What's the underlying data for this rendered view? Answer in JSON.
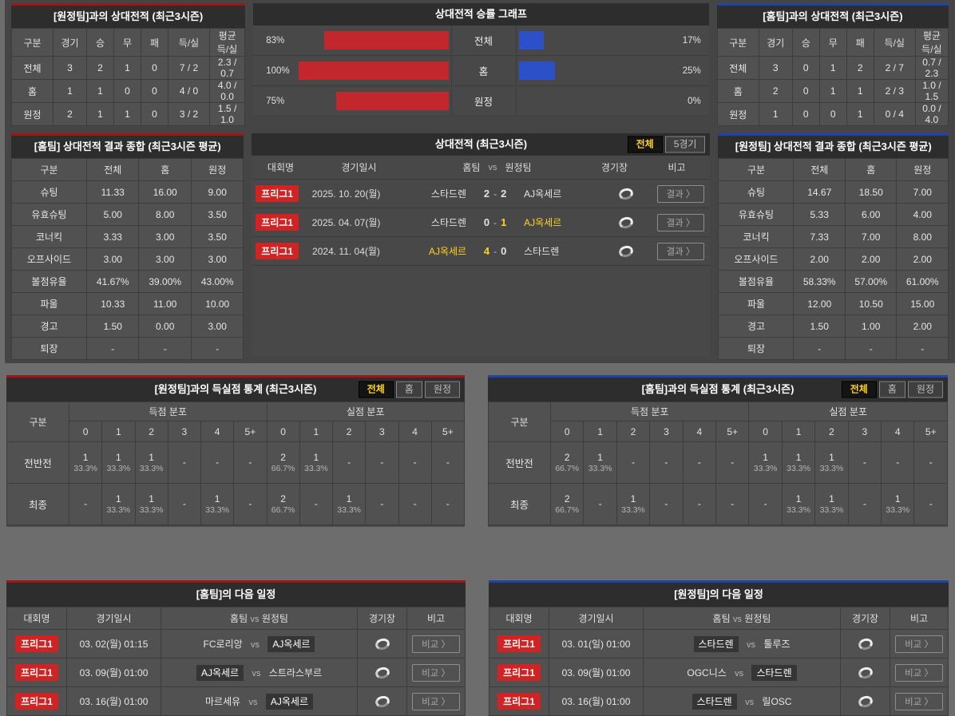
{
  "ui": {
    "vs": "vs",
    "result_label": "결과 〉",
    "compare_label": "비교 〉"
  },
  "colors": {
    "red_bar": "#c1272d",
    "blue_bar": "#2b50c8",
    "badge_red": "#d02424",
    "highlight_yellow": "#ffd21e",
    "panel_border_red": "#a31515",
    "panel_border_blue": "#1e44a8"
  },
  "top_left": {
    "title": "[원정팀]과의 상대전적 (최근3시즌)",
    "headers": [
      "구분",
      "경기",
      "승",
      "무",
      "패",
      "득/실",
      "평균 득/실"
    ],
    "rows": [
      {
        "label": "전체",
        "cells": [
          "3",
          "2",
          "1",
          "0",
          "7 / 2",
          "2.3 / 0.7"
        ]
      },
      {
        "label": "홈",
        "cells": [
          "1",
          "1",
          "0",
          "0",
          "4 / 0",
          "4.0 / 0.0"
        ]
      },
      {
        "label": "원정",
        "cells": [
          "2",
          "1",
          "1",
          "0",
          "3 / 2",
          "1.5 / 1.0"
        ]
      }
    ]
  },
  "chart": {
    "type": "bar",
    "title": "상대전적 승률 그래프",
    "rows": [
      {
        "label": "전체",
        "left_pct": "83%",
        "right_pct": "17%"
      },
      {
        "label": "홈",
        "left_pct": "100%",
        "right_pct": "25%"
      },
      {
        "label": "원정",
        "left_pct": "75%",
        "right_pct": "0%"
      }
    ]
  },
  "top_right": {
    "title": "[홈팀]과의 상대전적 (최근3시즌)",
    "headers": [
      "구분",
      "경기",
      "승",
      "무",
      "패",
      "득/실",
      "평균 득/실"
    ],
    "rows": [
      {
        "label": "전체",
        "cells": [
          "3",
          "0",
          "1",
          "2",
          "2 / 7",
          "0.7 / 2.3"
        ]
      },
      {
        "label": "홈",
        "cells": [
          "2",
          "0",
          "1",
          "1",
          "2 / 3",
          "1.0 / 1.5"
        ]
      },
      {
        "label": "원정",
        "cells": [
          "1",
          "0",
          "0",
          "1",
          "0 / 4",
          "0.0 / 4.0"
        ]
      }
    ]
  },
  "stats_home": {
    "title": "[홈팀] 상대전적 결과 종합 (최근3시즌 평균)",
    "headers": [
      "구분",
      "전체",
      "홈",
      "원정"
    ],
    "rows": [
      {
        "label": "슈팅",
        "cells": [
          "11.33",
          "16.00",
          "9.00"
        ]
      },
      {
        "label": "유효슈팅",
        "cells": [
          "5.00",
          "8.00",
          "3.50"
        ]
      },
      {
        "label": "코너킥",
        "cells": [
          "3.33",
          "3.00",
          "3.50"
        ]
      },
      {
        "label": "오프사이드",
        "cells": [
          "3.00",
          "3.00",
          "3.00"
        ]
      },
      {
        "label": "볼점유율",
        "cells": [
          "41.67%",
          "39.00%",
          "43.00%"
        ]
      },
      {
        "label": "파울",
        "cells": [
          "10.33",
          "11.00",
          "10.00"
        ]
      },
      {
        "label": "경고",
        "cells": [
          "1.50",
          "0.00",
          "3.00"
        ]
      },
      {
        "label": "퇴장",
        "cells": [
          "-",
          "-",
          "-"
        ]
      }
    ]
  },
  "matches": {
    "title": "상대전적 (최근3시즌)",
    "tabs": [
      {
        "label": "전체",
        "active": true
      },
      {
        "label": "5경기",
        "active": false
      }
    ],
    "headers": {
      "league": "대회명",
      "date": "경기일시",
      "home": "홈팀",
      "away": "원정팀",
      "stadium": "경기장",
      "note": "비고"
    },
    "rows": [
      {
        "league": "프리그1",
        "date": "2025. 10. 20(월)",
        "home": "스타드렌",
        "hs": "2",
        "as": "2",
        "away": "AJ옥세르",
        "winner": "draw"
      },
      {
        "league": "프리그1",
        "date": "2025. 04. 07(월)",
        "home": "스타드렌",
        "hs": "0",
        "as": "1",
        "away": "AJ옥세르",
        "winner": "away"
      },
      {
        "league": "프리그1",
        "date": "2024. 11. 04(월)",
        "home": "AJ옥세르",
        "hs": "4",
        "as": "0",
        "away": "스타드렌",
        "winner": "home"
      }
    ]
  },
  "stats_away": {
    "title": "[원정팀] 상대전적 결과 종합 (최근3시즌 평균)",
    "headers": [
      "구분",
      "전체",
      "홈",
      "원정"
    ],
    "rows": [
      {
        "label": "슈팅",
        "cells": [
          "14.67",
          "18.50",
          "7.00"
        ]
      },
      {
        "label": "유효슈팅",
        "cells": [
          "5.33",
          "6.00",
          "4.00"
        ]
      },
      {
        "label": "코너킥",
        "cells": [
          "7.33",
          "7.00",
          "8.00"
        ]
      },
      {
        "label": "오프사이드",
        "cells": [
          "2.00",
          "2.00",
          "2.00"
        ]
      },
      {
        "label": "볼점유율",
        "cells": [
          "58.33%",
          "57.00%",
          "61.00%"
        ]
      },
      {
        "label": "파울",
        "cells": [
          "12.00",
          "10.50",
          "15.00"
        ]
      },
      {
        "label": "경고",
        "cells": [
          "1.50",
          "1.00",
          "2.00"
        ]
      },
      {
        "label": "퇴장",
        "cells": [
          "-",
          "-",
          "-"
        ]
      }
    ]
  },
  "goals_left": {
    "title": "[원정팀]과의 득실점 통계 (최근3시즌)",
    "tabs": [
      {
        "label": "전체",
        "active": true
      },
      {
        "label": "홈",
        "active": false
      },
      {
        "label": "원정",
        "active": false
      }
    ],
    "corner": "구분",
    "group1": "득점 분포",
    "group2": "실점 분포",
    "bins": [
      "0",
      "1",
      "2",
      "3",
      "4",
      "5+"
    ],
    "rows": [
      {
        "label": "전반전",
        "scored": [
          {
            "n": "1",
            "p": "33.3%"
          },
          {
            "n": "1",
            "p": "33.3%"
          },
          {
            "n": "1",
            "p": "33.3%"
          },
          {
            "n": "-",
            "p": ""
          },
          {
            "n": "-",
            "p": ""
          },
          {
            "n": "-",
            "p": ""
          }
        ],
        "conceded": [
          {
            "n": "2",
            "p": "66.7%"
          },
          {
            "n": "1",
            "p": "33.3%"
          },
          {
            "n": "-",
            "p": ""
          },
          {
            "n": "-",
            "p": ""
          },
          {
            "n": "-",
            "p": ""
          },
          {
            "n": "-",
            "p": ""
          }
        ]
      },
      {
        "label": "최종",
        "scored": [
          {
            "n": "-",
            "p": ""
          },
          {
            "n": "1",
            "p": "33.3%"
          },
          {
            "n": "1",
            "p": "33.3%"
          },
          {
            "n": "-",
            "p": ""
          },
          {
            "n": "1",
            "p": "33.3%"
          },
          {
            "n": "-",
            "p": ""
          }
        ],
        "conceded": [
          {
            "n": "2",
            "p": "66.7%"
          },
          {
            "n": "-",
            "p": ""
          },
          {
            "n": "1",
            "p": "33.3%"
          },
          {
            "n": "-",
            "p": ""
          },
          {
            "n": "-",
            "p": ""
          },
          {
            "n": "-",
            "p": ""
          }
        ]
      }
    ]
  },
  "goals_right": {
    "title": "[홈팀]과의 득실점 통계 (최근3시즌)",
    "tabs": [
      {
        "label": "전체",
        "active": true
      },
      {
        "label": "홈",
        "active": false
      },
      {
        "label": "원정",
        "active": false
      }
    ],
    "corner": "구분",
    "group1": "득점 분포",
    "group2": "실점 분포",
    "bins": [
      "0",
      "1",
      "2",
      "3",
      "4",
      "5+"
    ],
    "rows": [
      {
        "label": "전반전",
        "scored": [
          {
            "n": "2",
            "p": "66.7%"
          },
          {
            "n": "1",
            "p": "33.3%"
          },
          {
            "n": "-",
            "p": ""
          },
          {
            "n": "-",
            "p": ""
          },
          {
            "n": "-",
            "p": ""
          },
          {
            "n": "-",
            "p": ""
          }
        ],
        "conceded": [
          {
            "n": "1",
            "p": "33.3%"
          },
          {
            "n": "1",
            "p": "33.3%"
          },
          {
            "n": "1",
            "p": "33.3%"
          },
          {
            "n": "-",
            "p": ""
          },
          {
            "n": "-",
            "p": ""
          },
          {
            "n": "-",
            "p": ""
          }
        ]
      },
      {
        "label": "최종",
        "scored": [
          {
            "n": "2",
            "p": "66.7%"
          },
          {
            "n": "-",
            "p": ""
          },
          {
            "n": "1",
            "p": "33.3%"
          },
          {
            "n": "-",
            "p": ""
          },
          {
            "n": "-",
            "p": ""
          },
          {
            "n": "-",
            "p": ""
          }
        ],
        "conceded": [
          {
            "n": "-",
            "p": ""
          },
          {
            "n": "1",
            "p": "33.3%"
          },
          {
            "n": "1",
            "p": "33.3%"
          },
          {
            "n": "-",
            "p": ""
          },
          {
            "n": "1",
            "p": "33.3%"
          },
          {
            "n": "-",
            "p": ""
          }
        ]
      }
    ]
  },
  "sched_left": {
    "title": "[홈팀]의 다음 일정",
    "headers": {
      "league": "대회명",
      "date": "경기일시",
      "home": "홈팀",
      "away": "원정팀",
      "stadium": "경기장",
      "note": "비고"
    },
    "rows": [
      {
        "league": "프리그1",
        "date": "03. 02(월) 01:15",
        "home": "FC로리앙",
        "away": "AJ옥세르",
        "chip": "away"
      },
      {
        "league": "프리그1",
        "date": "03. 09(월) 01:00",
        "home": "AJ옥세르",
        "away": "스트라스부르",
        "chip": "home"
      },
      {
        "league": "프리그1",
        "date": "03. 16(월) 01:00",
        "home": "마르세유",
        "away": "AJ옥세르",
        "chip": "away"
      }
    ]
  },
  "sched_right": {
    "title": "[원정팀]의 다음 일정",
    "headers": {
      "league": "대회명",
      "date": "경기일시",
      "home": "홈팀",
      "away": "원정팀",
      "stadium": "경기장",
      "note": "비고"
    },
    "rows": [
      {
        "league": "프리그1",
        "date": "03. 01(일) 01:00",
        "home": "스타드렌",
        "away": "툴루즈",
        "chip": "home"
      },
      {
        "league": "프리그1",
        "date": "03. 09(월) 01:00",
        "home": "OGC니스",
        "away": "스타드렌",
        "chip": "away"
      },
      {
        "league": "프리그1",
        "date": "03. 16(월) 01:00",
        "home": "스타드렌",
        "away": "릴OSC",
        "chip": "home"
      }
    ]
  }
}
